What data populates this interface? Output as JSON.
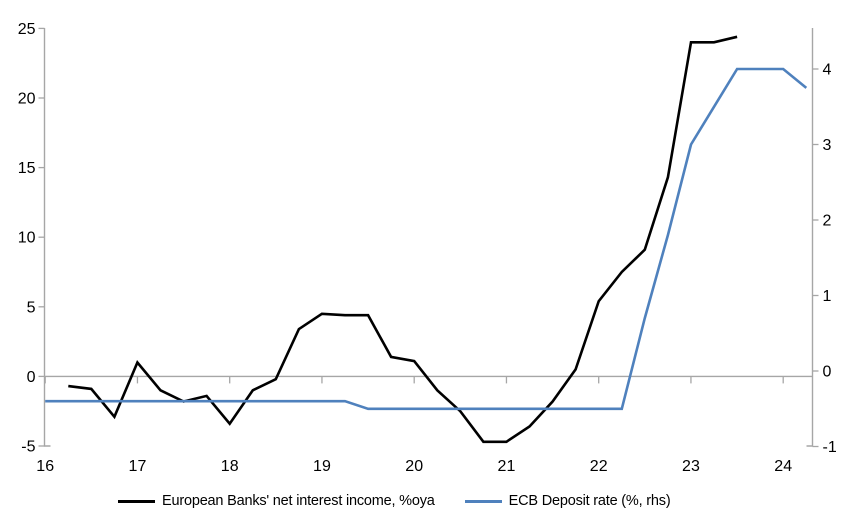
{
  "chart_data": {
    "type": "line",
    "title": "",
    "x_axis": {
      "ticks": [
        16,
        17,
        18,
        19,
        20,
        21,
        22,
        23,
        24
      ],
      "range": [
        16,
        24.31
      ],
      "unit": "year (20xx)"
    },
    "left_axis": {
      "ticks": [
        -5,
        0,
        5,
        10,
        15,
        20,
        25
      ],
      "range": [
        -5,
        25
      ]
    },
    "right_axis": {
      "ticks": [
        -1,
        0,
        1,
        2,
        3,
        4
      ],
      "range": [
        -1,
        4.54
      ]
    },
    "grid": "single horizontal line at left-axis zero",
    "legend_position": "bottom",
    "series": [
      {
        "name": "European Banks' net interest income, %oya",
        "axis": "left",
        "color": "#000000",
        "x": [
          16.25,
          16.5,
          16.75,
          17.0,
          17.25,
          17.5,
          17.75,
          18.0,
          18.25,
          18.5,
          18.75,
          19.0,
          19.25,
          19.5,
          19.75,
          20.0,
          20.25,
          20.5,
          20.75,
          21.0,
          21.25,
          21.5,
          21.75,
          22.0,
          22.25,
          22.5,
          22.75,
          23.0,
          23.25,
          23.5
        ],
        "values": [
          -0.7,
          -0.9,
          -2.9,
          1.0,
          -1.0,
          -1.8,
          -1.4,
          -3.4,
          -1.0,
          -0.2,
          3.4,
          4.5,
          4.4,
          4.4,
          1.4,
          1.1,
          -1.0,
          -2.5,
          -4.7,
          -4.7,
          -3.6,
          -1.8,
          0.5,
          5.4,
          7.5,
          9.1,
          14.3,
          24.0,
          24.0,
          24.4
        ]
      },
      {
        "name": "ECB Deposit rate (%, rhs)",
        "axis": "right",
        "color": "#4f81bd",
        "x": [
          16.0,
          16.25,
          16.5,
          16.75,
          17.0,
          17.25,
          17.5,
          17.75,
          18.0,
          18.25,
          18.5,
          18.75,
          19.0,
          19.25,
          19.5,
          19.75,
          20.0,
          20.25,
          20.5,
          20.75,
          21.0,
          21.25,
          21.5,
          21.75,
          22.0,
          22.25,
          22.5,
          22.75,
          23.0,
          23.25,
          23.5,
          23.75,
          24.0,
          24.25
        ],
        "values": [
          -0.4,
          -0.4,
          -0.4,
          -0.4,
          -0.4,
          -0.4,
          -0.4,
          -0.4,
          -0.4,
          -0.4,
          -0.4,
          -0.4,
          -0.4,
          -0.4,
          -0.5,
          -0.5,
          -0.5,
          -0.5,
          -0.5,
          -0.5,
          -0.5,
          -0.5,
          -0.5,
          -0.5,
          -0.5,
          -0.5,
          0.7,
          1.8,
          3.0,
          3.5,
          4.0,
          4.0,
          4.0,
          3.75
        ]
      }
    ]
  },
  "colors": {
    "axis_line": "#a6a6a6",
    "zero_gridline": "#a6a6a6",
    "tick_text": "#000000",
    "background": "#ffffff"
  }
}
